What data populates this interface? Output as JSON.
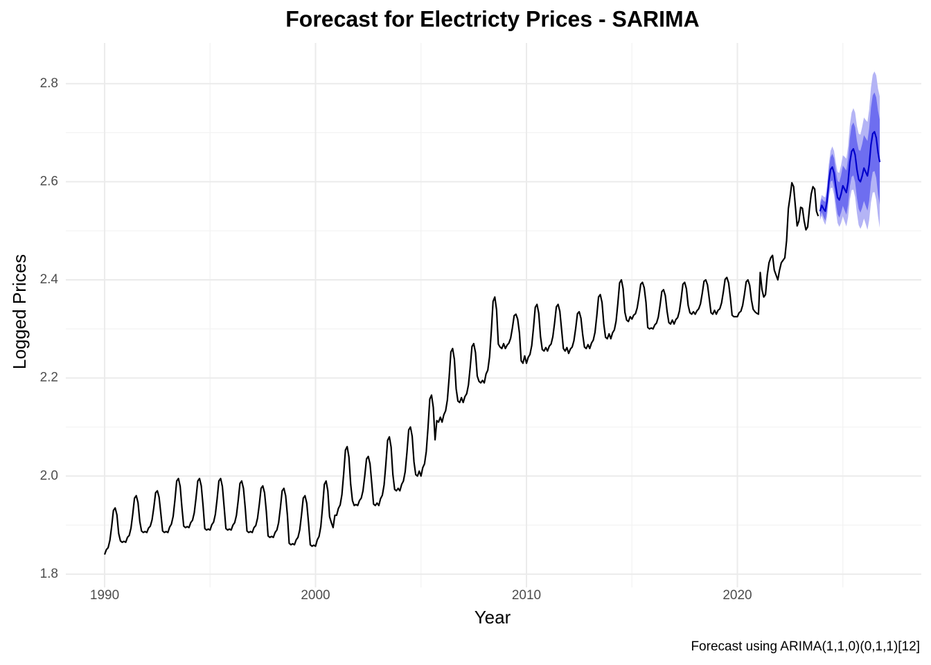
{
  "chart_data": {
    "type": "line",
    "title": "Forecast for Electricty Prices - SARIMA",
    "x_label": "Year",
    "y_label": "Logged Prices",
    "caption": "Forecast using ARIMA(1,1,0)(0,1,1)[12]",
    "xlim": [
      1988.16,
      2028.72
    ],
    "xticks": [
      1990,
      2000,
      2010,
      2020
    ],
    "ylim": [
      1.773,
      2.883
    ],
    "yticks": [
      1.8,
      {
        "value": 2,
        "label": "2.0"
      },
      2.2,
      2.4,
      2.6,
      2.8
    ],
    "grid": true,
    "minor_grid": true,
    "series": [
      {
        "color": "#000000",
        "x": [
          1990,
          1990.083,
          1990.167,
          1990.25,
          1990.333,
          1990.417,
          1990.5,
          1990.583,
          1990.667,
          1990.75,
          1990.833,
          1990.917,
          1991,
          1991.083,
          1991.167,
          1991.25,
          1991.333,
          1991.417,
          1991.5,
          1991.583,
          1991.667,
          1991.75,
          1991.833,
          1991.917,
          1992,
          1992.083,
          1992.167,
          1992.25,
          1992.333,
          1992.417,
          1992.5,
          1992.583,
          1992.667,
          1992.75,
          1992.833,
          1992.917,
          1993,
          1993.083,
          1993.167,
          1993.25,
          1993.333,
          1993.417,
          1993.5,
          1993.583,
          1993.667,
          1993.75,
          1993.833,
          1993.917,
          1994,
          1994.083,
          1994.167,
          1994.25,
          1994.333,
          1994.417,
          1994.5,
          1994.583,
          1994.667,
          1994.75,
          1994.833,
          1994.917,
          1995,
          1995.083,
          1995.167,
          1995.25,
          1995.333,
          1995.417,
          1995.5,
          1995.583,
          1995.667,
          1995.75,
          1995.833,
          1995.917,
          1996,
          1996.083,
          1996.167,
          1996.25,
          1996.333,
          1996.417,
          1996.5,
          1996.583,
          1996.667,
          1996.75,
          1996.833,
          1996.917,
          1997,
          1997.083,
          1997.167,
          1997.25,
          1997.333,
          1997.417,
          1997.5,
          1997.583,
          1997.667,
          1997.75,
          1997.833,
          1997.917,
          1998,
          1998.083,
          1998.167,
          1998.25,
          1998.333,
          1998.417,
          1998.5,
          1998.583,
          1998.667,
          1998.75,
          1998.833,
          1998.917,
          1999,
          1999.083,
          1999.167,
          1999.25,
          1999.333,
          1999.417,
          1999.5,
          1999.583,
          1999.667,
          1999.75,
          1999.833,
          1999.917,
          2000,
          2000.083,
          2000.167,
          2000.25,
          2000.333,
          2000.417,
          2000.5,
          2000.583,
          2000.667,
          2000.75,
          2000.833,
          2000.917,
          2001,
          2001.083,
          2001.167,
          2001.25,
          2001.333,
          2001.417,
          2001.5,
          2001.583,
          2001.667,
          2001.75,
          2001.833,
          2001.917,
          2002,
          2002.083,
          2002.167,
          2002.25,
          2002.333,
          2002.417,
          2002.5,
          2002.583,
          2002.667,
          2002.75,
          2002.833,
          2002.917,
          2003,
          2003.083,
          2003.167,
          2003.25,
          2003.333,
          2003.417,
          2003.5,
          2003.583,
          2003.667,
          2003.75,
          2003.833,
          2003.917,
          2004,
          2004.083,
          2004.167,
          2004.25,
          2004.333,
          2004.417,
          2004.5,
          2004.583,
          2004.667,
          2004.75,
          2004.833,
          2004.917,
          2005,
          2005.083,
          2005.167,
          2005.25,
          2005.333,
          2005.417,
          2005.5,
          2005.583,
          2005.667,
          2005.75,
          2005.833,
          2005.917,
          2006,
          2006.083,
          2006.167,
          2006.25,
          2006.333,
          2006.417,
          2006.5,
          2006.583,
          2006.667,
          2006.75,
          2006.833,
          2006.917,
          2007,
          2007.083,
          2007.167,
          2007.25,
          2007.333,
          2007.417,
          2007.5,
          2007.583,
          2007.667,
          2007.75,
          2007.833,
          2007.917,
          2008,
          2008.083,
          2008.167,
          2008.25,
          2008.333,
          2008.417,
          2008.5,
          2008.583,
          2008.667,
          2008.75,
          2008.833,
          2008.917,
          2009,
          2009.083,
          2009.167,
          2009.25,
          2009.333,
          2009.417,
          2009.5,
          2009.583,
          2009.667,
          2009.75,
          2009.833,
          2009.917,
          2010,
          2010.083,
          2010.167,
          2010.25,
          2010.333,
          2010.417,
          2010.5,
          2010.583,
          2010.667,
          2010.75,
          2010.833,
          2010.917,
          2011,
          2011.083,
          2011.167,
          2011.25,
          2011.333,
          2011.417,
          2011.5,
          2011.583,
          2011.667,
          2011.75,
          2011.833,
          2011.917,
          2012,
          2012.083,
          2012.167,
          2012.25,
          2012.333,
          2012.417,
          2012.5,
          2012.583,
          2012.667,
          2012.75,
          2012.833,
          2012.917,
          2013,
          2013.083,
          2013.167,
          2013.25,
          2013.333,
          2013.417,
          2013.5,
          2013.583,
          2013.667,
          2013.75,
          2013.833,
          2013.917,
          2014,
          2014.083,
          2014.167,
          2014.25,
          2014.333,
          2014.417,
          2014.5,
          2014.583,
          2014.667,
          2014.75,
          2014.833,
          2014.917,
          2015,
          2015.083,
          2015.167,
          2015.25,
          2015.333,
          2015.417,
          2015.5,
          2015.583,
          2015.667,
          2015.75,
          2015.833,
          2015.917,
          2016,
          2016.083,
          2016.167,
          2016.25,
          2016.333,
          2016.417,
          2016.5,
          2016.583,
          2016.667,
          2016.75,
          2016.833,
          2016.917,
          2017,
          2017.083,
          2017.167,
          2017.25,
          2017.333,
          2017.417,
          2017.5,
          2017.583,
          2017.667,
          2017.75,
          2017.833,
          2017.917,
          2018,
          2018.083,
          2018.167,
          2018.25,
          2018.333,
          2018.417,
          2018.5,
          2018.583,
          2018.667,
          2018.75,
          2018.833,
          2018.917,
          2019,
          2019.083,
          2019.167,
          2019.25,
          2019.333,
          2019.417,
          2019.5,
          2019.583,
          2019.667,
          2019.75,
          2019.833,
          2019.917,
          2020,
          2020.083,
          2020.167,
          2020.25,
          2020.333,
          2020.417,
          2020.5,
          2020.583,
          2020.667,
          2020.75,
          2020.833,
          2020.917,
          2021,
          2021.083,
          2021.167,
          2021.25,
          2021.333,
          2021.417,
          2021.5,
          2021.583,
          2021.667,
          2021.75,
          2021.833,
          2021.917,
          2022,
          2022.083,
          2022.167,
          2022.25,
          2022.333,
          2022.417,
          2022.5,
          2022.583,
          2022.667,
          2022.75,
          2022.833,
          2022.917,
          2023,
          2023.083,
          2023.167,
          2023.25,
          2023.333,
          2023.417,
          2023.5,
          2023.583,
          2023.667,
          2023.75,
          2023.833
        ],
        "values": [
          1.84,
          1.85,
          1.854,
          1.869,
          1.897,
          1.93,
          1.935,
          1.921,
          1.883,
          1.868,
          1.865,
          1.867,
          1.865,
          1.875,
          1.879,
          1.894,
          1.922,
          1.955,
          1.96,
          1.946,
          1.908,
          1.888,
          1.885,
          1.887,
          1.885,
          1.894,
          1.898,
          1.911,
          1.936,
          1.966,
          1.97,
          1.957,
          1.923,
          1.888,
          1.885,
          1.887,
          1.885,
          1.896,
          1.902,
          1.918,
          1.951,
          1.99,
          1.995,
          1.979,
          1.935,
          1.898,
          1.895,
          1.897,
          1.895,
          1.905,
          1.91,
          1.925,
          1.955,
          1.99,
          1.995,
          1.98,
          1.94,
          1.893,
          1.89,
          1.892,
          1.89,
          1.901,
          1.906,
          1.922,
          1.953,
          1.99,
          1.995,
          1.979,
          1.937,
          1.893,
          1.89,
          1.892,
          1.89,
          1.9,
          1.905,
          1.92,
          1.95,
          1.985,
          1.99,
          1.975,
          1.935,
          1.888,
          1.885,
          1.887,
          1.885,
          1.895,
          1.899,
          1.914,
          1.942,
          1.975,
          1.98,
          1.966,
          1.928,
          1.878,
          1.875,
          1.877,
          1.875,
          1.885,
          1.89,
          1.905,
          1.935,
          1.97,
          1.975,
          1.96,
          1.92,
          1.863,
          1.86,
          1.862,
          1.86,
          1.87,
          1.875,
          1.89,
          1.92,
          1.955,
          1.96,
          1.945,
          1.905,
          1.86,
          1.857,
          1.859,
          1.857,
          1.87,
          1.877,
          1.897,
          1.937,
          1.983,
          1.99,
          1.97,
          1.917,
          1.905,
          1.895,
          1.92,
          1.92,
          1.934,
          1.941,
          1.962,
          2.004,
          2.053,
          2.06,
          2.039,
          1.983,
          1.95,
          1.94,
          1.942,
          1.94,
          1.95,
          1.955,
          1.97,
          2.0,
          2.035,
          2.04,
          2.025,
          1.985,
          1.943,
          1.94,
          1.945,
          1.94,
          1.954,
          1.961,
          1.982,
          2.024,
          2.073,
          2.08,
          2.059,
          2.003,
          1.973,
          1.97,
          1.975,
          1.97,
          1.983,
          1.99,
          2.009,
          2.048,
          2.094,
          2.1,
          2.081,
          2.029,
          2.003,
          2.0,
          2.01,
          2.0,
          2.017,
          2.025,
          2.05,
          2.099,
          2.157,
          2.165,
          2.14,
          2.074,
          2.113,
          2.11,
          2.12,
          2.11,
          2.125,
          2.133,
          2.155,
          2.2,
          2.253,
          2.26,
          2.238,
          2.178,
          2.153,
          2.15,
          2.16,
          2.15,
          2.162,
          2.168,
          2.186,
          2.222,
          2.264,
          2.27,
          2.252,
          2.204,
          2.193,
          2.19,
          2.195,
          2.19,
          2.208,
          2.216,
          2.243,
          2.295,
          2.356,
          2.365,
          2.339,
          2.269,
          2.263,
          2.26,
          2.27,
          2.26,
          2.267,
          2.271,
          2.281,
          2.302,
          2.327,
          2.33,
          2.32,
          2.292,
          2.235,
          2.23,
          2.245,
          2.23,
          2.242,
          2.248,
          2.266,
          2.302,
          2.344,
          2.35,
          2.332,
          2.284,
          2.258,
          2.255,
          2.262,
          2.255,
          2.265,
          2.269,
          2.284,
          2.312,
          2.345,
          2.35,
          2.336,
          2.298,
          2.26,
          2.255,
          2.262,
          2.25,
          2.259,
          2.263,
          2.276,
          2.301,
          2.331,
          2.335,
          2.322,
          2.288,
          2.263,
          2.26,
          2.268,
          2.26,
          2.271,
          2.277,
          2.293,
          2.326,
          2.365,
          2.37,
          2.354,
          2.31,
          2.283,
          2.28,
          2.29,
          2.28,
          2.292,
          2.298,
          2.316,
          2.352,
          2.394,
          2.4,
          2.382,
          2.334,
          2.318,
          2.315,
          2.325,
          2.32,
          2.328,
          2.331,
          2.343,
          2.365,
          2.391,
          2.395,
          2.384,
          2.354,
          2.303,
          2.3,
          2.302,
          2.3,
          2.308,
          2.312,
          2.324,
          2.348,
          2.376,
          2.38,
          2.368,
          2.336,
          2.313,
          2.31,
          2.318,
          2.31,
          2.319,
          2.323,
          2.336,
          2.361,
          2.391,
          2.395,
          2.382,
          2.348,
          2.333,
          2.33,
          2.335,
          2.33,
          2.337,
          2.341,
          2.351,
          2.372,
          2.397,
          2.4,
          2.39,
          2.362,
          2.333,
          2.33,
          2.338,
          2.33,
          2.338,
          2.341,
          2.353,
          2.375,
          2.401,
          2.405,
          2.394,
          2.364,
          2.328,
          2.325,
          2.325,
          2.325,
          2.333,
          2.336,
          2.348,
          2.37,
          2.396,
          2.4,
          2.389,
          2.359,
          2.34,
          2.335,
          2.332,
          2.33,
          2.415,
          2.38,
          2.365,
          2.37,
          2.41,
          2.435,
          2.445,
          2.45,
          2.42,
          2.41,
          2.4,
          2.42,
          2.435,
          2.44,
          2.445,
          2.48,
          2.545,
          2.57,
          2.598,
          2.59,
          2.55,
          2.51,
          2.52,
          2.548,
          2.546,
          2.52,
          2.502,
          2.508,
          2.545,
          2.575,
          2.59,
          2.585,
          2.54,
          2.53
        ]
      }
    ],
    "forecast": {
      "color": "#0000cc",
      "x": [
        2023.917,
        2024,
        2024.083,
        2024.167,
        2024.25,
        2024.333,
        2024.417,
        2024.5,
        2024.583,
        2024.667,
        2024.75,
        2024.833,
        2024.917,
        2025,
        2025.083,
        2025.167,
        2025.25,
        2025.333,
        2025.417,
        2025.5,
        2025.583,
        2025.667,
        2025.75,
        2025.833,
        2025.917,
        2026,
        2026.083,
        2026.167,
        2026.25,
        2026.333,
        2026.417,
        2026.5,
        2026.583,
        2026.667,
        2026.75
      ],
      "values": [
        2.54,
        2.552,
        2.545,
        2.54,
        2.56,
        2.6,
        2.625,
        2.63,
        2.618,
        2.59,
        2.568,
        2.563,
        2.575,
        2.592,
        2.585,
        2.578,
        2.6,
        2.64,
        2.662,
        2.667,
        2.655,
        2.625,
        2.605,
        2.6,
        2.612,
        2.628,
        2.62,
        2.612,
        2.635,
        2.675,
        2.698,
        2.702,
        2.69,
        2.66,
        2.64
      ],
      "intervals": [
        {
          "color": "#b4b4f5",
          "lower": [
            2.522,
            2.531,
            2.52,
            2.512,
            2.528,
            2.565,
            2.587,
            2.588,
            2.573,
            2.541,
            2.516,
            2.508,
            2.516,
            2.53,
            2.519,
            2.509,
            2.528,
            2.564,
            2.583,
            2.584,
            2.569,
            2.536,
            2.512,
            2.504,
            2.512,
            2.525,
            2.514,
            2.502,
            2.522,
            2.558,
            2.578,
            2.579,
            2.563,
            2.53,
            2.506
          ],
          "upper": [
            2.558,
            2.573,
            2.57,
            2.568,
            2.592,
            2.635,
            2.663,
            2.672,
            2.663,
            2.639,
            2.62,
            2.618,
            2.634,
            2.654,
            2.651,
            2.647,
            2.672,
            2.716,
            2.741,
            2.75,
            2.741,
            2.714,
            2.698,
            2.696,
            2.712,
            2.731,
            2.726,
            2.722,
            2.748,
            2.792,
            2.818,
            2.825,
            2.817,
            2.79,
            2.774
          ]
        },
        {
          "color": "#6e6ef0",
          "lower": [
            2.528,
            2.538,
            2.529,
            2.521,
            2.539,
            2.577,
            2.6,
            2.603,
            2.588,
            2.558,
            2.534,
            2.527,
            2.537,
            2.551,
            2.542,
            2.533,
            2.553,
            2.591,
            2.61,
            2.613,
            2.599,
            2.567,
            2.545,
            2.537,
            2.547,
            2.561,
            2.551,
            2.541,
            2.561,
            2.599,
            2.62,
            2.622,
            2.608,
            2.575,
            2.553
          ],
          "upper": [
            2.552,
            2.566,
            2.561,
            2.559,
            2.581,
            2.623,
            2.65,
            2.657,
            2.648,
            2.622,
            2.602,
            2.599,
            2.613,
            2.633,
            2.628,
            2.623,
            2.647,
            2.689,
            2.714,
            2.721,
            2.711,
            2.683,
            2.665,
            2.663,
            2.677,
            2.695,
            2.689,
            2.683,
            2.709,
            2.751,
            2.776,
            2.782,
            2.772,
            2.745,
            2.727
          ]
        }
      ]
    }
  }
}
